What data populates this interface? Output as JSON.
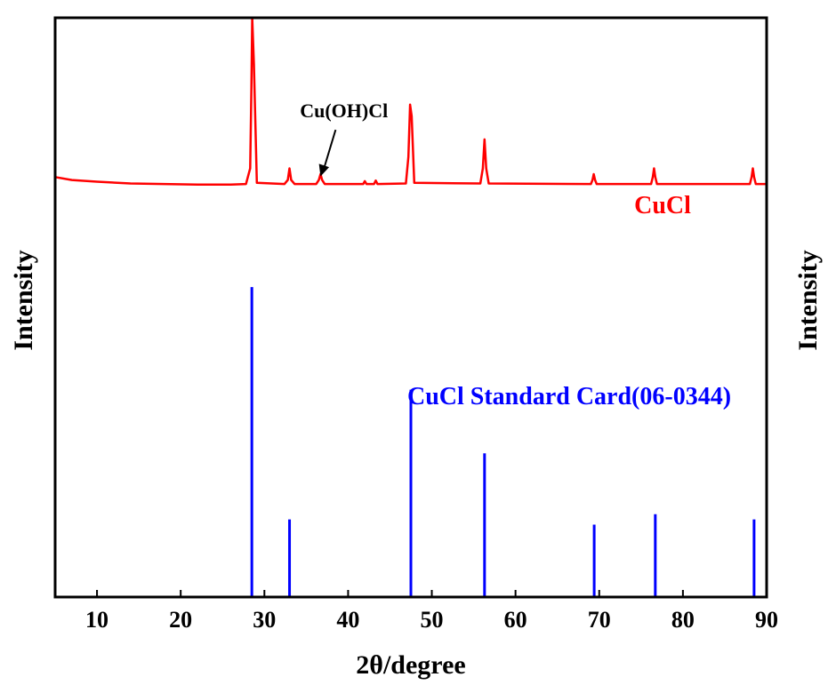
{
  "chart_data": {
    "type": "line",
    "xlabel": "2θ/degree",
    "ylabel_left": "Intensity",
    "ylabel_right": "Intensity",
    "xlim": [
      5,
      90
    ],
    "ylim": [
      0,
      100
    ],
    "x_ticks": [
      10,
      20,
      30,
      40,
      50,
      60,
      70,
      80,
      90
    ],
    "grid": false,
    "y_tick_labels_shown": false,
    "series": [
      {
        "name": "CuCl",
        "kind": "line",
        "color": "#ff0000",
        "x": [
          5,
          7,
          10,
          14,
          18,
          22,
          26,
          27.8,
          28.3,
          28.45,
          28.55,
          28.75,
          29.1,
          32.4,
          32.8,
          33.0,
          33.2,
          33.6,
          36.2,
          36.5,
          36.7,
          36.9,
          37.2,
          41.8,
          42.0,
          42.2,
          43.1,
          43.3,
          43.5,
          46.9,
          47.2,
          47.4,
          47.6,
          47.9,
          55.8,
          56.1,
          56.3,
          56.5,
          56.8,
          69.0,
          69.2,
          69.35,
          69.5,
          69.7,
          76.2,
          76.4,
          76.55,
          76.7,
          76.9,
          88.0,
          88.2,
          88.35,
          88.5,
          88.7,
          90
        ],
        "y": [
          72.5,
          72.0,
          71.7,
          71.4,
          71.3,
          71.2,
          71.2,
          71.3,
          74.0,
          88.0,
          100.0,
          92.0,
          71.5,
          71.3,
          72.0,
          74.0,
          72.0,
          71.3,
          71.3,
          72.0,
          73.0,
          72.0,
          71.3,
          71.3,
          71.8,
          71.3,
          71.3,
          71.9,
          71.3,
          71.4,
          76.0,
          85.0,
          83.0,
          71.5,
          71.4,
          74.0,
          79.0,
          74.0,
          71.4,
          71.3,
          72.0,
          73.0,
          72.0,
          71.3,
          71.3,
          72.5,
          74.0,
          72.5,
          71.3,
          71.3,
          72.5,
          74.0,
          72.5,
          71.3,
          71.3
        ]
      },
      {
        "name": "CuCl Standard Card(06-0344)",
        "kind": "sticks",
        "color": "#0000ff",
        "x": [
          28.5,
          33.0,
          47.5,
          56.3,
          69.4,
          76.7,
          88.5
        ],
        "y": [
          53.5,
          13.4,
          35.8,
          24.8,
          12.5,
          14.3,
          13.4
        ]
      }
    ],
    "annotations": [
      {
        "text": "Cu(OH)Cl",
        "target_x": 36.7,
        "target_y": 72.6,
        "label_x": 39.5,
        "label_y": 82.8
      }
    ]
  }
}
